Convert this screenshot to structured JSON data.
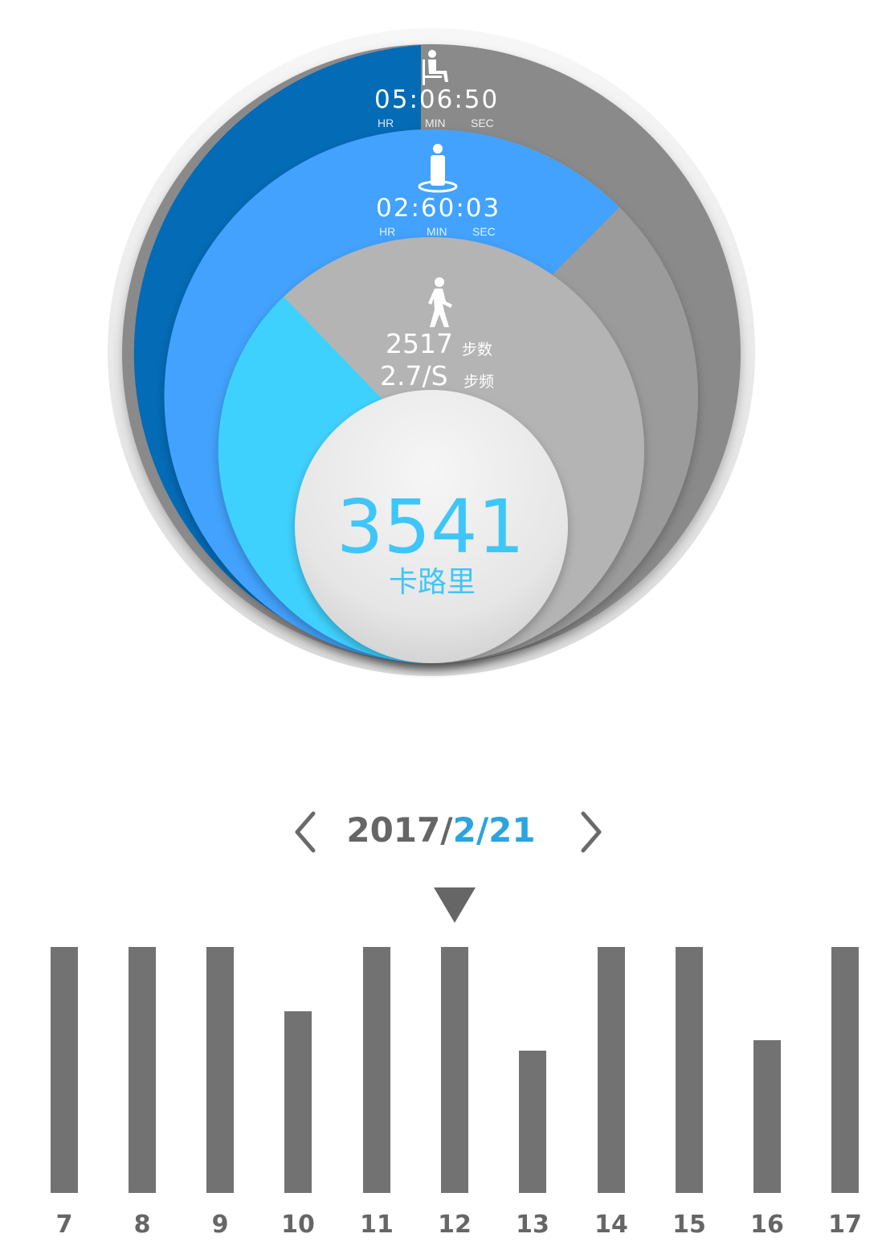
{
  "sitting": {
    "icon": "sitting-person-icon",
    "time": "05:06:50",
    "units": {
      "hr": "HR",
      "min": "MIN",
      "sec": "SEC"
    }
  },
  "standing": {
    "icon": "standing-person-icon",
    "time": "02:60:03",
    "units": {
      "hr": "HR",
      "min": "MIN",
      "sec": "SEC"
    }
  },
  "walking": {
    "icon": "walking-person-icon",
    "steps": "2517",
    "steps_label": "步数",
    "cadence": "2.7/S",
    "cadence_label": "步频"
  },
  "calories": {
    "value": "3541",
    "label": "卡路里"
  },
  "date": {
    "year": "2017/",
    "month": "2",
    "sep": "/",
    "day": "21",
    "prev_icon": "chevron-left-icon",
    "next_icon": "chevron-right-icon"
  },
  "pointer_icon": "triangle-down-icon",
  "colors": {
    "dark_blue": "#046bb6",
    "blue": "#42a2fd",
    "cyan": "#3fd1fe",
    "gray_dark": "#8a8a8a",
    "gray_mid": "#9b9b9b",
    "gray_light": "#b4b4b4",
    "bar": "#727272",
    "accent": "#2ba4e0"
  },
  "chart_data": {
    "type": "bar",
    "categories": [
      "7",
      "8",
      "9",
      "10",
      "11",
      "12",
      "13",
      "14",
      "15",
      "16",
      "17"
    ],
    "values": [
      1,
      1,
      1,
      0.74,
      1,
      1,
      0.58,
      1,
      1,
      0.62,
      1
    ],
    "selected": "12",
    "xlabel": "",
    "ylabel": "",
    "ylim": [
      0,
      1
    ],
    "grid": false
  }
}
